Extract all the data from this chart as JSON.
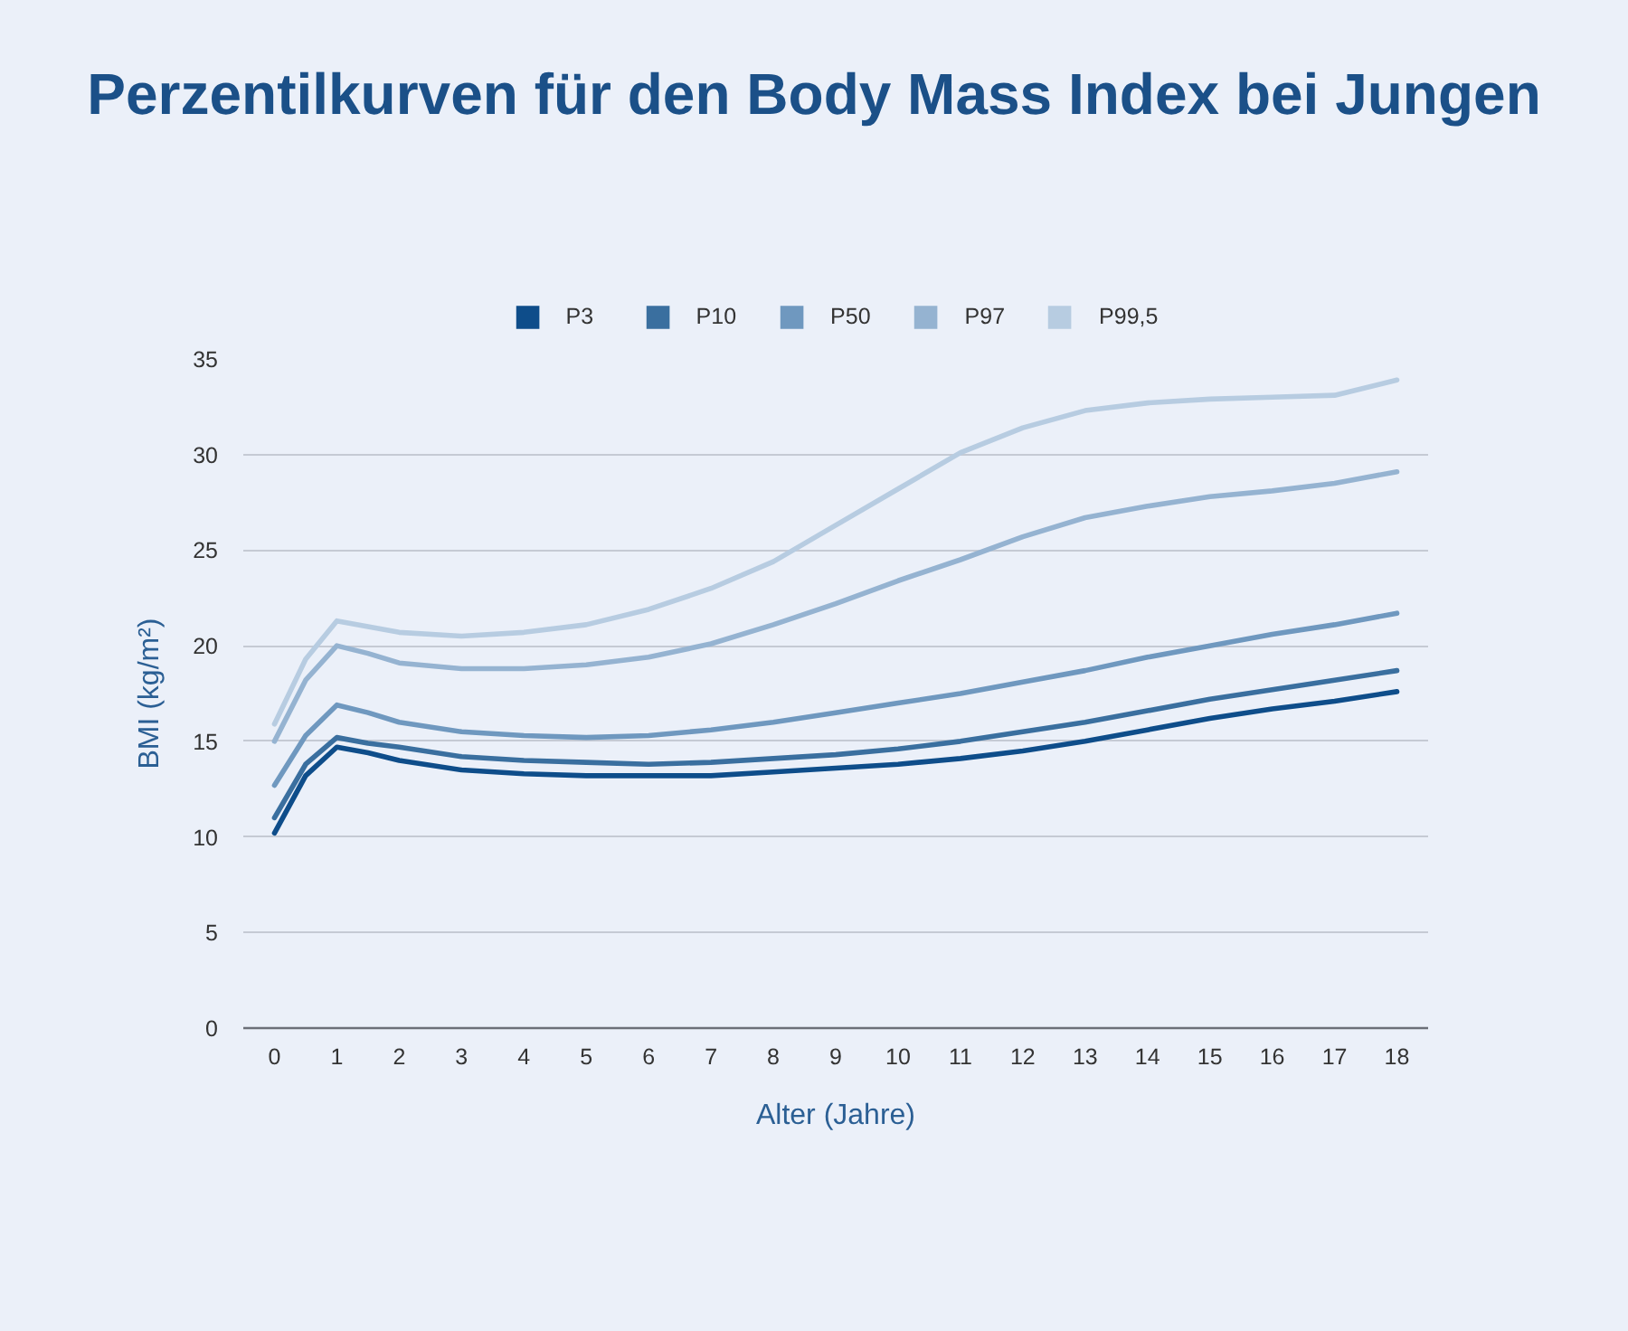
{
  "chart_data": {
    "type": "line",
    "title": "Perzentilkurven für den Body Mass Index bei Jungen",
    "xlabel": "Alter (Jahre)",
    "ylabel": "BMI (kg/m²)",
    "x": [
      0,
      0.5,
      1,
      1.5,
      2,
      3,
      4,
      5,
      6,
      7,
      8,
      9,
      10,
      11,
      12,
      13,
      14,
      15,
      16,
      17,
      18
    ],
    "xlim": [
      -0.5,
      18.5
    ],
    "xticks": [
      0,
      1,
      2,
      3,
      4,
      5,
      6,
      7,
      8,
      9,
      10,
      11,
      12,
      13,
      14,
      15,
      16,
      17,
      18
    ],
    "ylim": [
      0,
      35
    ],
    "yticks": [
      0,
      5,
      10,
      15,
      20,
      25,
      30,
      35
    ],
    "grid": "y",
    "legend": "top",
    "line_style": "solid",
    "series": [
      {
        "name": "P3",
        "color": "#0e4d8a",
        "values": [
          10.2,
          13.2,
          14.7,
          14.4,
          14.0,
          13.5,
          13.3,
          13.2,
          13.2,
          13.2,
          13.4,
          13.6,
          13.8,
          14.1,
          14.5,
          15.0,
          15.6,
          16.2,
          16.7,
          17.1,
          17.6
        ]
      },
      {
        "name": "P10",
        "color": "#3a6f9f",
        "values": [
          11.0,
          13.8,
          15.2,
          14.9,
          14.7,
          14.2,
          14.0,
          13.9,
          13.8,
          13.9,
          14.1,
          14.3,
          14.6,
          15.0,
          15.5,
          16.0,
          16.6,
          17.2,
          17.7,
          18.2,
          18.7
        ]
      },
      {
        "name": "P50",
        "color": "#6f98bf",
        "values": [
          12.7,
          15.3,
          16.9,
          16.5,
          16.0,
          15.5,
          15.3,
          15.2,
          15.3,
          15.6,
          16.0,
          16.5,
          17.0,
          17.5,
          18.1,
          18.7,
          19.4,
          20.0,
          20.6,
          21.1,
          21.7
        ]
      },
      {
        "name": "P97",
        "color": "#95b3d1",
        "values": [
          15.0,
          18.2,
          20.0,
          19.6,
          19.1,
          18.8,
          18.8,
          19.0,
          19.4,
          20.1,
          21.1,
          22.2,
          23.4,
          24.5,
          25.7,
          26.7,
          27.3,
          27.8,
          28.1,
          28.5,
          29.1
        ]
      },
      {
        "name": "P99,5",
        "color": "#b7cce1",
        "values": [
          15.9,
          19.3,
          21.3,
          21.0,
          20.7,
          20.5,
          20.7,
          21.1,
          21.9,
          23.0,
          24.4,
          26.3,
          28.2,
          30.1,
          31.4,
          32.3,
          32.7,
          32.9,
          33.0,
          33.1,
          33.9
        ]
      }
    ]
  }
}
